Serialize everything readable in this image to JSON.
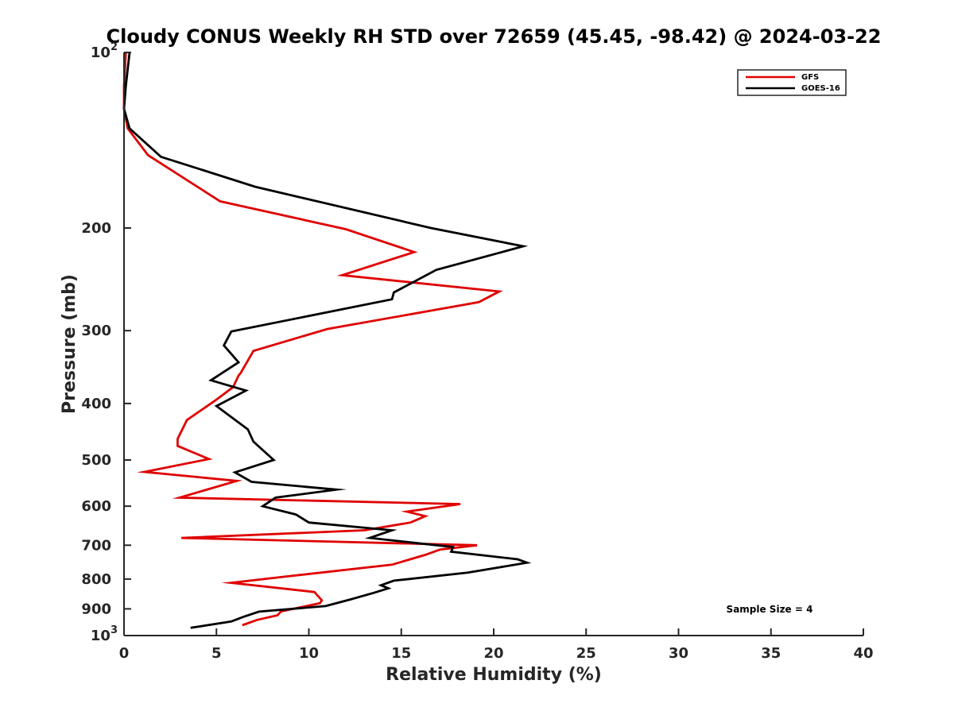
{
  "chart_data": {
    "type": "line",
    "title": "Cloudy CONUS Weekly RH STD over 72659 (45.45, -98.42) @ 2024-03-22",
    "xlabel": "Relative Humidity (%)",
    "ylabel": "Pressure (mb)",
    "xlim": [
      0,
      40
    ],
    "ylim": [
      100,
      1000
    ],
    "y_scale": "log",
    "y_reversed": true,
    "x_ticks": [
      "0",
      "5",
      "10",
      "15",
      "20",
      "25",
      "30",
      "35",
      "40"
    ],
    "y_ticks": [
      {
        "value": 100,
        "base": "10",
        "exp": "2"
      },
      {
        "value": 200,
        "label": "200"
      },
      {
        "value": 300,
        "label": "300"
      },
      {
        "value": 400,
        "label": "400"
      },
      {
        "value": 500,
        "label": "500"
      },
      {
        "value": 600,
        "label": "600"
      },
      {
        "value": 700,
        "label": "700"
      },
      {
        "value": 800,
        "label": "800"
      },
      {
        "value": 900,
        "label": "900"
      },
      {
        "value": 1000,
        "base": "10",
        "exp": "3"
      }
    ],
    "legend": "top-right",
    "annotation": "Sample Size = 4",
    "series": [
      {
        "name": "GFS",
        "color": "#e00000",
        "points": [
          [
            0.1,
            100
          ],
          [
            0.0,
            114
          ],
          [
            0.0,
            125
          ],
          [
            0.2,
            135
          ],
          [
            1.3,
            150
          ],
          [
            5.2,
            180
          ],
          [
            12.0,
            201
          ],
          [
            15.7,
            220
          ],
          [
            11.8,
            241
          ],
          [
            20.3,
            257
          ],
          [
            19.2,
            268
          ],
          [
            11.0,
            298
          ],
          [
            7.0,
            325
          ],
          [
            6.3,
            355
          ],
          [
            6.2,
            358
          ],
          [
            5.9,
            375
          ],
          [
            4.9,
            396
          ],
          [
            3.4,
            427
          ],
          [
            3.2,
            440
          ],
          [
            2.9,
            460
          ],
          [
            2.9,
            473
          ],
          [
            4.6,
            498
          ],
          [
            1.1,
            524
          ],
          [
            6.1,
            543
          ],
          [
            3.0,
            580
          ],
          [
            18.2,
            595
          ],
          [
            15.3,
            613
          ],
          [
            16.3,
            624
          ],
          [
            15.5,
            640
          ],
          [
            13.0,
            660
          ],
          [
            3.1,
            680
          ],
          [
            19.1,
            700
          ],
          [
            17.1,
            712
          ],
          [
            16.3,
            727
          ],
          [
            14.5,
            756
          ],
          [
            8.6,
            793
          ],
          [
            5.8,
            812
          ],
          [
            10.3,
            842
          ],
          [
            10.7,
            870
          ],
          [
            10.6,
            880
          ],
          [
            8.5,
            909
          ],
          [
            8.3,
            923
          ],
          [
            7.2,
            940
          ],
          [
            6.4,
            960
          ]
        ]
      },
      {
        "name": "GOES-16",
        "color": "#000000",
        "points": [
          [
            0.3,
            100
          ],
          [
            0.1,
            114
          ],
          [
            0.0,
            125
          ],
          [
            0.3,
            135
          ],
          [
            2.0,
            151
          ],
          [
            7.1,
            170
          ],
          [
            16.6,
            200
          ],
          [
            21.6,
            215
          ],
          [
            16.9,
            236
          ],
          [
            14.6,
            258
          ],
          [
            14.5,
            265
          ],
          [
            5.8,
            301
          ],
          [
            5.4,
            318
          ],
          [
            6.2,
            340
          ],
          [
            4.7,
            365
          ],
          [
            6.6,
            380
          ],
          [
            5.0,
            404
          ],
          [
            6.7,
            443
          ],
          [
            7.0,
            465
          ],
          [
            8.1,
            500
          ],
          [
            6.0,
            525
          ],
          [
            6.9,
            545
          ],
          [
            11.5,
            562
          ],
          [
            8.2,
            580
          ],
          [
            7.5,
            600
          ],
          [
            9.3,
            620
          ],
          [
            10.0,
            640
          ],
          [
            14.5,
            660
          ],
          [
            13.3,
            680
          ],
          [
            17.8,
            705
          ],
          [
            17.7,
            718
          ],
          [
            21.3,
            740
          ],
          [
            21.8,
            750
          ],
          [
            18.6,
            780
          ],
          [
            14.6,
            805
          ],
          [
            13.9,
            820
          ],
          [
            14.3,
            830
          ],
          [
            13.5,
            845
          ],
          [
            12.2,
            868
          ],
          [
            10.9,
            890
          ],
          [
            7.3,
            910
          ],
          [
            6.4,
            930
          ],
          [
            5.8,
            946
          ],
          [
            3.6,
            970
          ]
        ]
      }
    ]
  }
}
